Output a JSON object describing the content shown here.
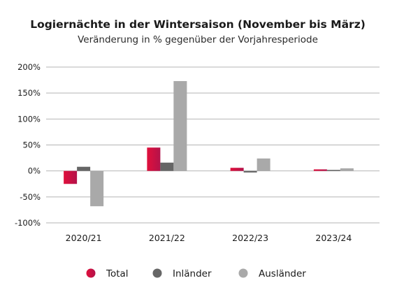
{
  "chart_data": {
    "type": "bar",
    "title": "Logiernächte in der Wintersaison (November bis März)",
    "subtitle": "Veränderung in % gegenüber der Vorjahresperiode",
    "categories": [
      "2020/21",
      "2021/22",
      "2022/23",
      "2023/24"
    ],
    "ylim": [
      -100,
      200
    ],
    "yticks": [
      -100,
      -50,
      0,
      50,
      100,
      150,
      200
    ],
    "ytick_labels": [
      "-100%",
      "-50%",
      "0%",
      "50%",
      "100%",
      "150%",
      "200%"
    ],
    "grid": true,
    "legend_position": "bottom",
    "series": [
      {
        "name": "Total",
        "values": [
          -25,
          45,
          6,
          3
        ],
        "color": "#d6123f"
      },
      {
        "name": "Inländer",
        "values": [
          8,
          16,
          -3,
          2
        ],
        "color": "#666666"
      },
      {
        "name": "Ausländer",
        "values": [
          -68,
          173,
          24,
          5
        ],
        "color": "#a9a9a9"
      }
    ]
  }
}
